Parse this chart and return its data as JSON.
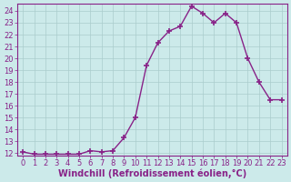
{
  "x": [
    0,
    1,
    2,
    3,
    4,
    5,
    6,
    7,
    8,
    9,
    10,
    11,
    12,
    13,
    14,
    15,
    16,
    17,
    18,
    19,
    20,
    21,
    22,
    23
  ],
  "y": [
    12.1,
    11.9,
    11.9,
    11.9,
    11.9,
    11.9,
    12.2,
    12.1,
    12.2,
    13.3,
    15.0,
    19.4,
    21.3,
    22.3,
    22.7,
    24.4,
    23.8,
    23.0,
    23.8,
    23.0,
    20.0,
    18.0,
    16.5,
    16.5
  ],
  "line_color": "#882288",
  "marker": "+",
  "marker_size": 4,
  "marker_lw": 1.2,
  "bg_color": "#cceaea",
  "grid_color": "#aacccc",
  "xlabel": "Windchill (Refroidissement éolien,°C)",
  "xlabel_fontsize": 7,
  "tick_fontsize": 6,
  "ylim_min": 12,
  "ylim_max": 24.6,
  "yticks": [
    12,
    13,
    14,
    15,
    16,
    17,
    18,
    19,
    20,
    21,
    22,
    23,
    24
  ],
  "xlim_min": -0.5,
  "xlim_max": 23.5,
  "xticks": [
    0,
    1,
    2,
    3,
    4,
    5,
    6,
    7,
    8,
    9,
    10,
    11,
    12,
    13,
    14,
    15,
    16,
    17,
    18,
    19,
    20,
    21,
    22,
    23
  ],
  "line_width": 1.0
}
